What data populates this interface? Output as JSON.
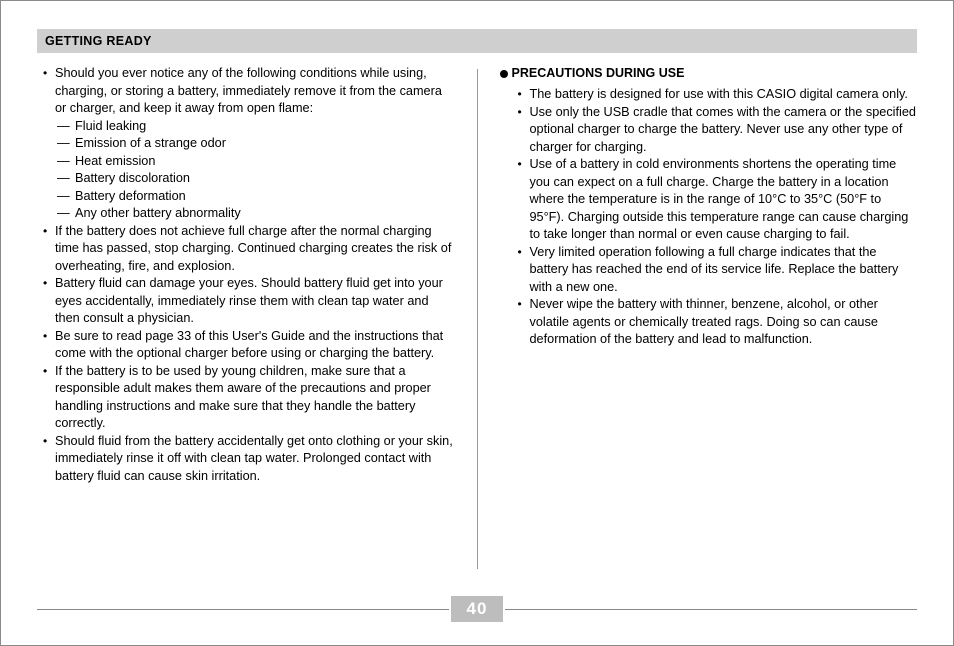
{
  "header": {
    "title": "GETTING READY"
  },
  "pageNumber": "40",
  "left": {
    "items": [
      {
        "text": "Should you ever notice any of the following conditions while using, charging, or storing a battery, immediately remove it from the camera or charger, and keep it away from open flame:",
        "sub": [
          "Fluid leaking",
          "Emission of a strange odor",
          "Heat emission",
          "Battery discoloration",
          "Battery deformation",
          "Any other battery abnormality"
        ]
      },
      {
        "text": "If the battery does not achieve full charge after the normal charging time has passed, stop charging. Continued charging creates the risk of overheating, fire, and explosion."
      },
      {
        "text": "Battery fluid can damage your eyes. Should battery fluid get into your eyes accidentally, immediately rinse them with clean tap water and then consult a physician."
      },
      {
        "text": "Be sure to read page 33 of this User's Guide and the instructions that come with the optional charger before using or charging the battery."
      },
      {
        "text": "If the battery is to be used by young children, make sure that a responsible adult makes them aware of the precautions and proper handling instructions and make sure that they handle the battery correctly."
      },
      {
        "text": "Should fluid from the battery accidentally get onto clothing or your skin, immediately rinse it off with clean tap water. Prolonged contact with battery fluid can cause skin irritation."
      }
    ]
  },
  "right": {
    "heading": "PRECAUTIONS DURING USE",
    "items": [
      {
        "text": "The battery is designed for use with this CASIO digital camera only."
      },
      {
        "text": "Use only the USB cradle that comes with the camera or the specified optional charger to charge the battery. Never use any other type of charger for charging."
      },
      {
        "text": "Use of a battery in cold environments shortens the operating time you can expect on a full charge. Charge the battery in a location where the temperature is in the range of 10°C to 35°C (50°F to 95°F). Charging outside this temperature range can cause charging to take longer than normal or even cause charging to fail."
      },
      {
        "text": "Very limited operation following a full charge indicates that the battery has reached the end of its service life. Replace the battery with a new one."
      },
      {
        "text": "Never wipe the battery with thinner, benzene, alcohol, or other volatile agents or chemically treated rags. Doing so can cause deformation of the battery and lead to malfunction."
      }
    ]
  }
}
